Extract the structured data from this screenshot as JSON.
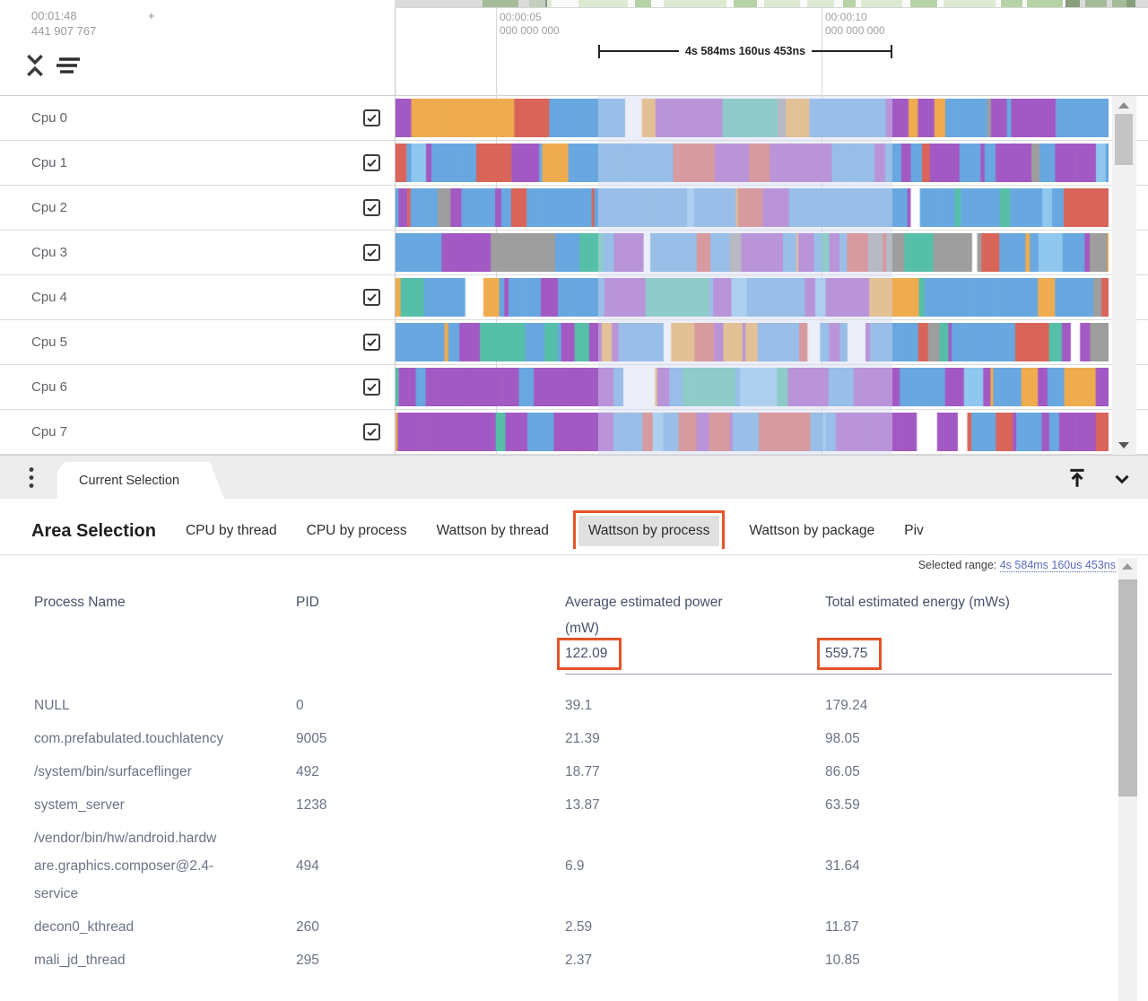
{
  "timeline": {
    "cursor_time": "00:01:48",
    "cursor_plus": "+",
    "cursor_ns": "441 907 767",
    "ticks": [
      {
        "time": "00:00:05",
        "ns": "000 000 000"
      },
      {
        "time": "00:00:10",
        "ns": "000 000 000"
      }
    ],
    "measurement": "4s 584ms 160us 453ns"
  },
  "tracks": [
    {
      "label": "Cpu 0",
      "checked": true
    },
    {
      "label": "Cpu 1",
      "checked": true
    },
    {
      "label": "Cpu 2",
      "checked": true
    },
    {
      "label": "Cpu 3",
      "checked": true
    },
    {
      "label": "Cpu 4",
      "checked": true
    },
    {
      "label": "Cpu 5",
      "checked": true
    },
    {
      "label": "Cpu 6",
      "checked": true
    },
    {
      "label": "Cpu 7",
      "checked": true
    }
  ],
  "palette": {
    "blue": "#68a7e0",
    "lightblue": "#8fc7ee",
    "purple": "#a259c4",
    "red": "#d96459",
    "orange": "#efac4e",
    "teal": "#56bfa8",
    "gray": "#9e9e9e",
    "white": "#ffffff"
  },
  "selection_overlay_color": "rgba(213,219,241,0.45)",
  "annotation_color": "#e55428",
  "tabbar": {
    "current_tab": "Current Selection"
  },
  "details": {
    "title": "Area Selection",
    "tabs": [
      {
        "label": "CPU by thread",
        "selected": false,
        "annotated": false
      },
      {
        "label": "CPU by process",
        "selected": false,
        "annotated": false
      },
      {
        "label": "Wattson by thread",
        "selected": false,
        "annotated": false
      },
      {
        "label": "Wattson by process",
        "selected": true,
        "annotated": true
      },
      {
        "label": "Wattson by package",
        "selected": false,
        "annotated": false
      },
      {
        "label": "Piv",
        "selected": false,
        "annotated": false
      }
    ],
    "selected_range_label": "Selected range:",
    "selected_range_value": "4s 584ms 160us 453ns",
    "table": {
      "columns": [
        "Process Name",
        "PID",
        "Average estimated power\n(mW)",
        "Total estimated energy (mWs)"
      ],
      "totals": {
        "power": "122.09",
        "energy": "559.75",
        "power_annotated": true,
        "energy_annotated": true
      },
      "rows": [
        {
          "name": "NULL",
          "pid": "0",
          "power": "39.1",
          "energy": "179.24"
        },
        {
          "name": "com.prefabulated.touchlatency",
          "pid": "9005",
          "power": "21.39",
          "energy": "98.05"
        },
        {
          "name": "/system/bin/surfaceflinger",
          "pid": "492",
          "power": "18.77",
          "energy": "86.05"
        },
        {
          "name": "system_server",
          "pid": "1238",
          "power": "13.87",
          "energy": "63.59"
        },
        {
          "name": "/vendor/bin/hw/android.hardw\nare.graphics.composer@2.4-\nservice",
          "pid": "494",
          "power": "6.9",
          "energy": "31.64"
        },
        {
          "name": "decon0_kthread",
          "pid": "260",
          "power": "2.59",
          "energy": "11.87"
        },
        {
          "name": "mali_jd_thread",
          "pid": "295",
          "power": "2.37",
          "energy": "10.85"
        }
      ]
    }
  },
  "icons": [
    "collapse-tracks-icon",
    "sort-tracks-icon",
    "kebab-menu-icon",
    "dock-to-top-icon",
    "collapse-panel-icon",
    "checkbox-checked-icon",
    "scroll-up-arrow-icon",
    "scroll-down-arrow-icon"
  ]
}
